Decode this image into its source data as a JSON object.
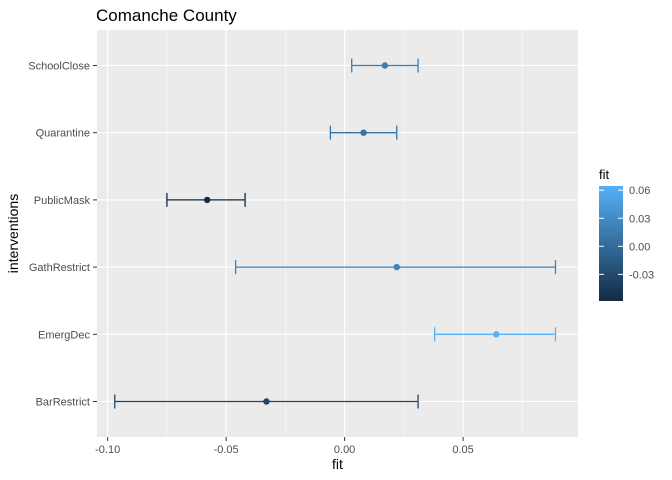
{
  "chart_data": {
    "type": "scatter",
    "title": "Comanche County",
    "xlabel": "fit",
    "ylabel": "interventions",
    "xlim": [
      -0.1045,
      0.0985
    ],
    "x_ticks": [
      -0.1,
      -0.05,
      0.0,
      0.05
    ],
    "x_tick_labels": [
      "-0.10",
      "-0.05",
      "0.00",
      "0.05"
    ],
    "categories": [
      "BarRestrict",
      "EmergDec",
      "GathRestrict",
      "PublicMask",
      "Quarantine",
      "SchoolClose"
    ],
    "series": [
      {
        "points": [
          {
            "category": "BarRestrict",
            "fit": -0.033,
            "lower": -0.097,
            "upper": 0.031
          },
          {
            "category": "EmergDec",
            "fit": 0.064,
            "lower": 0.038,
            "upper": 0.089
          },
          {
            "category": "GathRestrict",
            "fit": 0.022,
            "lower": -0.046,
            "upper": 0.089
          },
          {
            "category": "PublicMask",
            "fit": -0.058,
            "lower": -0.075,
            "upper": -0.042
          },
          {
            "category": "Quarantine",
            "fit": 0.008,
            "lower": -0.006,
            "upper": 0.022
          },
          {
            "category": "SchoolClose",
            "fit": 0.017,
            "lower": 0.003,
            "upper": 0.031
          }
        ]
      }
    ],
    "legend": {
      "title": "fit",
      "position": "right",
      "color_scale": {
        "low": "#132B43",
        "high": "#56B1F7",
        "min": -0.058,
        "max": 0.064
      },
      "breaks": [
        0.06,
        0.03,
        0.0,
        -0.03
      ],
      "break_labels": [
        "0.06",
        "0.03",
        "0.00",
        "-0.03"
      ]
    },
    "grid": true,
    "panel_background": "#EBEBEB",
    "grid_color": "#FFFFFF"
  }
}
